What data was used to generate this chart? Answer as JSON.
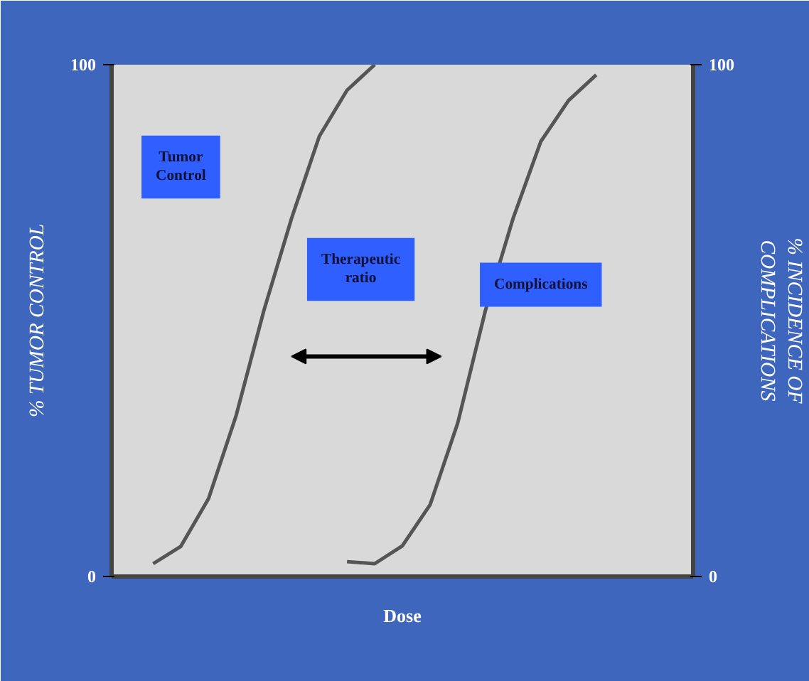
{
  "chart_data": {
    "type": "line",
    "xlabel": "Dose",
    "ylabel": "% TUMOR CONTROL",
    "y2label": "% INCIDENCE OF COMPLICATIONS",
    "categories": [
      null,
      null,
      null,
      null,
      null,
      null,
      null,
      null,
      null,
      null,
      null,
      null,
      null,
      null,
      null,
      null,
      null,
      null,
      null,
      null,
      null
    ],
    "series": [
      {
        "color": "#555555",
        "values": [
          null,
          2.5,
          5.9,
          15.2,
          31.5,
          52,
          70,
          86,
          95,
          100,
          null,
          null,
          null,
          null,
          null,
          null,
          null,
          null,
          null,
          null,
          null
        ]
      },
      {
        "color": "#555555",
        "values": [
          null,
          null,
          null,
          null,
          null,
          null,
          null,
          null,
          2.9,
          2.5,
          6,
          14,
          30,
          52,
          70,
          85,
          93,
          98,
          null,
          null,
          null
        ]
      }
    ],
    "ylim": [
      0,
      100
    ],
    "yticks": [
      0,
      100
    ],
    "y2lim": [
      0,
      100
    ],
    "y2ticks": [
      0,
      100
    ],
    "tick_labels": "y",
    "annotations": [
      "Tumor Control",
      "Therapeutic ratio",
      "Complications"
    ]
  }
}
